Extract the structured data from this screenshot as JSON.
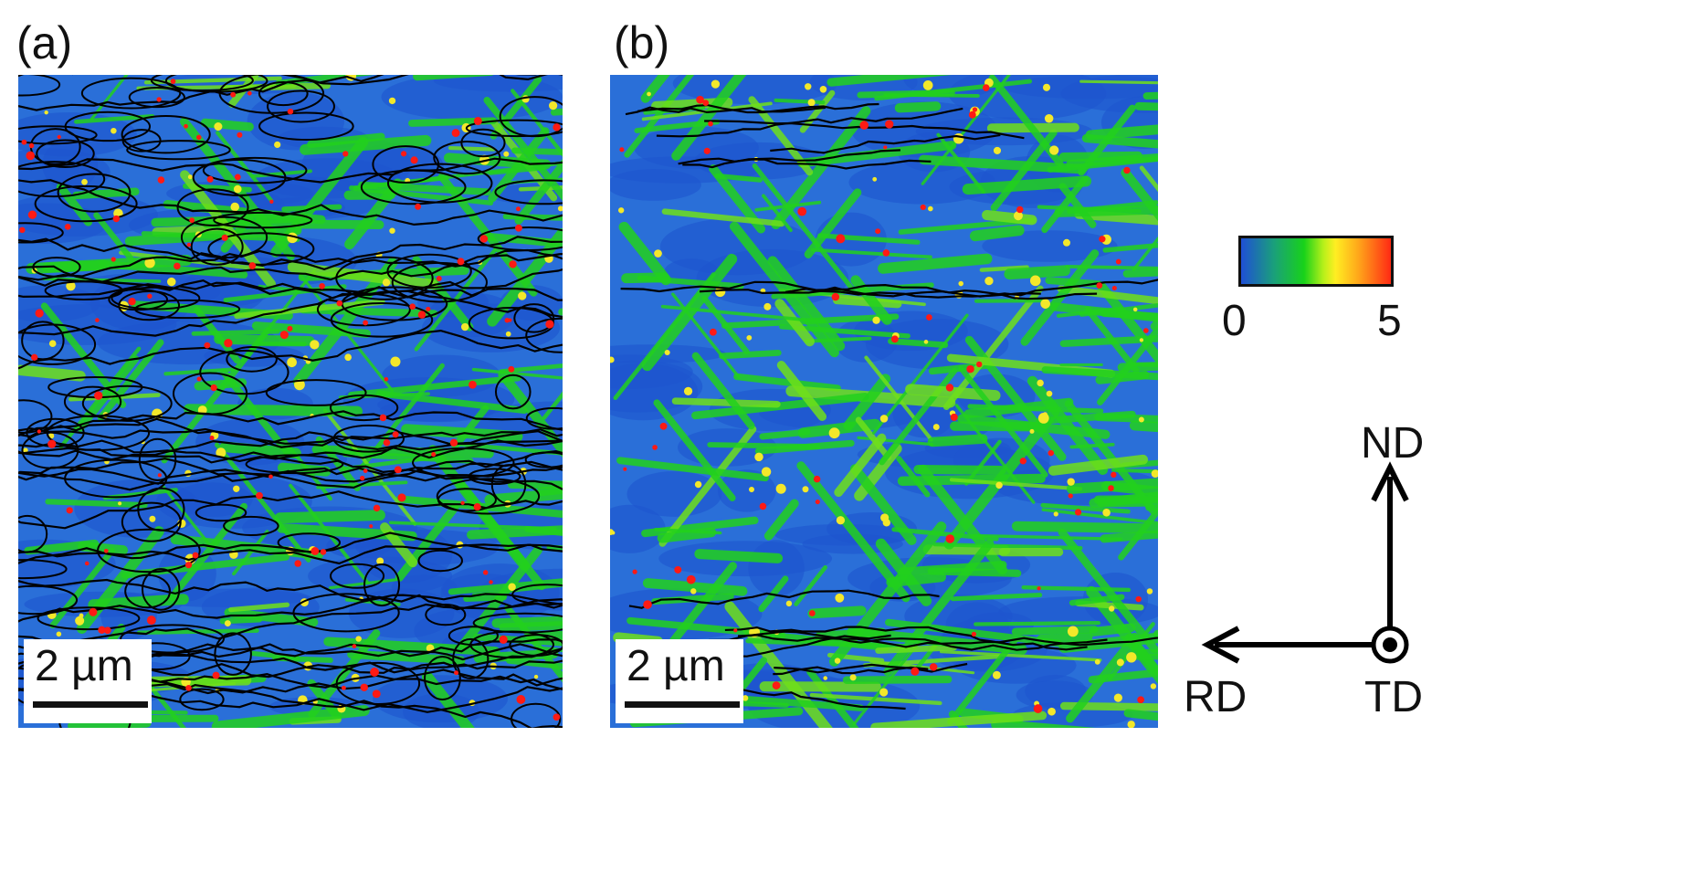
{
  "panels": [
    {
      "label": "(a)",
      "scale_bar": "2 µm"
    },
    {
      "label": "(b)",
      "scale_bar": "2 µm"
    }
  ],
  "colorbar": {
    "min_label": "0",
    "max_label": "5",
    "colors": [
      "#1f4fd6",
      "#1aa07a",
      "#18d21a",
      "#b7f01a",
      "#ffee22",
      "#ffa81a",
      "#ff2a14"
    ]
  },
  "axes": {
    "nd": "ND",
    "rd": "RD",
    "td": "TD"
  },
  "colors": {
    "blue": "#2a6fd8",
    "green": "#22d11d",
    "yellow": "#f3e82a",
    "red": "#ff1a14",
    "boundary": "#000000"
  }
}
